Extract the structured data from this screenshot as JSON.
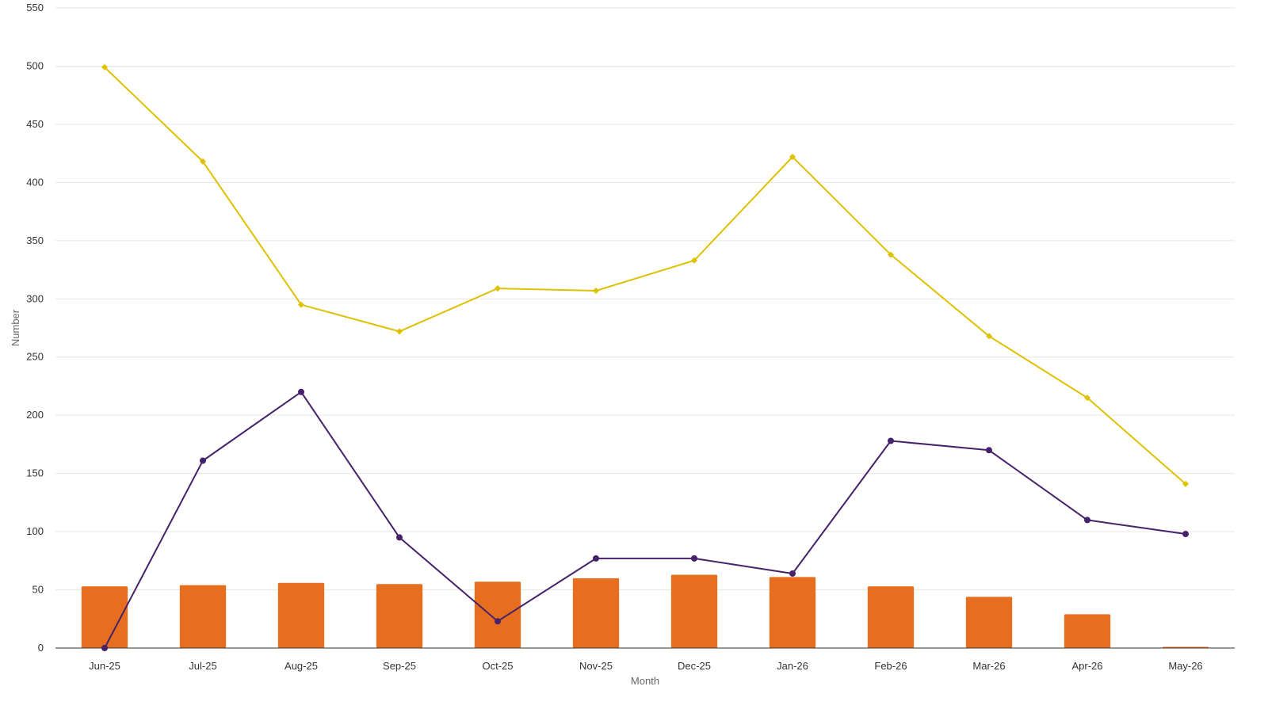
{
  "chart_data": {
    "type": "bar",
    "categories": [
      "Jun-25",
      "Jul-25",
      "Aug-25",
      "Sep-25",
      "Oct-25",
      "Nov-25",
      "Dec-25",
      "Jan-26",
      "Feb-26",
      "Mar-26",
      "Apr-26",
      "May-26"
    ],
    "xlabel": "Month",
    "ylabel": "Number",
    "ylim": [
      0,
      550
    ],
    "yticks": [
      0,
      50,
      100,
      150,
      200,
      250,
      300,
      350,
      400,
      450,
      500,
      550
    ],
    "grid": true,
    "series": [
      {
        "type": "bar",
        "color": "#E86E1F",
        "values": [
          53,
          54,
          56,
          55,
          57,
          60,
          63,
          61,
          53,
          44,
          29,
          1
        ]
      },
      {
        "type": "line",
        "marker": "circle",
        "color": "#45226A",
        "values": [
          0,
          161,
          220,
          95,
          23,
          77,
          77,
          64,
          178,
          170,
          110,
          98
        ]
      },
      {
        "type": "line",
        "marker": "diamond",
        "color": "#DEC100",
        "values": [
          499,
          418,
          295,
          272,
          309,
          307,
          333,
          422,
          338,
          268,
          215,
          141
        ]
      }
    ]
  }
}
